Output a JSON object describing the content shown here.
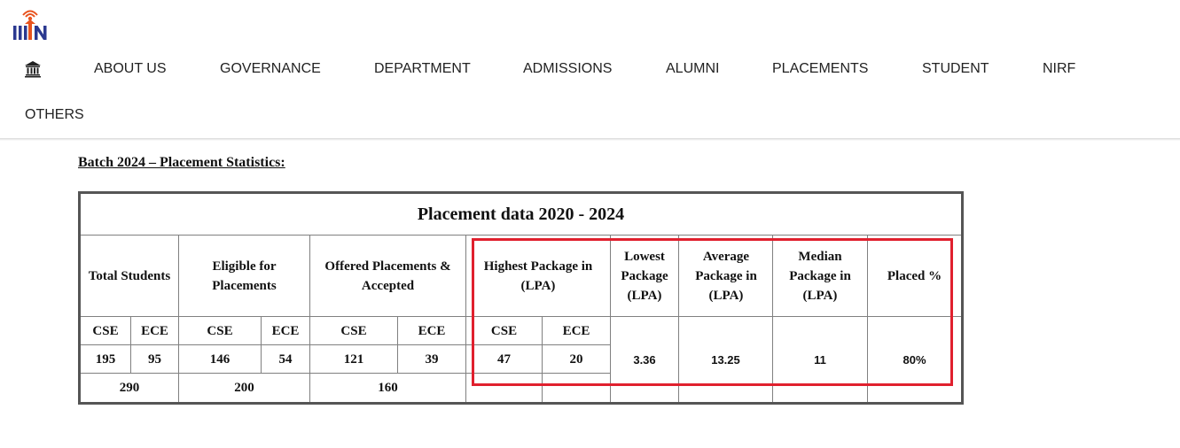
{
  "header": {
    "logo_icon": "iiitn-logo",
    "home_icon": "institution-building-icon",
    "nav_items": [
      "ABOUT US",
      "GOVERNANCE",
      "DEPARTMENT",
      "ADMISSIONS",
      "ALUMNI",
      "PLACEMENTS",
      "STUDENT",
      "NIRF",
      "OTHERS"
    ]
  },
  "content": {
    "section_title": "Batch 2024 – Placement Statistics:",
    "table": {
      "title": "Placement data 2020 - 2024",
      "headers": {
        "total_students": "Total Students",
        "eligible": "Eligible for Placements",
        "offered": "Offered Placements & Accepted",
        "highest": "Highest Package in (LPA)",
        "lowest": "Lowest Package (LPA)",
        "average": "Average Package in (LPA)",
        "median": "Median Package in (LPA)",
        "placed": "Placed %"
      },
      "branches": {
        "cse": "CSE",
        "ece": "ECE"
      },
      "values": {
        "total_cse": "195",
        "total_ece": "95",
        "eligible_cse": "146",
        "eligible_ece": "54",
        "offered_cse": "121",
        "offered_ece": "39",
        "highest_cse": "47",
        "highest_ece": "20",
        "lowest": "3.36",
        "average": "13.25",
        "median": "11",
        "placed": "80%"
      },
      "totals": {
        "total": "290",
        "eligible": "200",
        "offered": "160"
      }
    },
    "highlight_color": "#e0202e"
  }
}
